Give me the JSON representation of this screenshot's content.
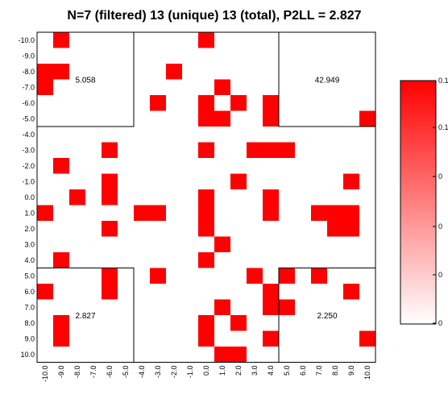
{
  "chart_data": {
    "type": "heatmap",
    "title": "N=7 (filtered) 13 (unique) 13 (total), P2LL = 2.827",
    "xlabel": "",
    "ylabel": "",
    "x_tick_labels": [
      "-10.0",
      "-9.0",
      "-8.0",
      "-7.0",
      "-6.0",
      "-5.0",
      "-4.0",
      "-3.0",
      "-2.0",
      "-1.0",
      "0.0",
      "1.0",
      "2.0",
      "3.0",
      "4.0",
      "5.0",
      "6.0",
      "7.0",
      "8.0",
      "9.0",
      "10.0"
    ],
    "y_tick_labels": [
      "-10.0",
      "-9.0",
      "-8.0",
      "-7.0",
      "-6.0",
      "-5.0",
      "-4.0",
      "-3.0",
      "-2.0",
      "-1.0",
      "0.0",
      "1.0",
      "2.0",
      "3.0",
      "4.0",
      "5.0",
      "6.0",
      "7.0",
      "8.0",
      "9.0",
      "10.0"
    ],
    "xlim": [
      -10,
      10
    ],
    "ylim": [
      -10,
      10
    ],
    "cell_color": "#ff0000",
    "background": "#ffffff",
    "cells": [
      [
        -9,
        -10
      ],
      [
        0,
        -10
      ],
      [
        -10,
        -8
      ],
      [
        -9,
        -8
      ],
      [
        -2,
        -8
      ],
      [
        -10,
        -7
      ],
      [
        1,
        -7
      ],
      [
        -3,
        -6
      ],
      [
        0,
        -6
      ],
      [
        2,
        -6
      ],
      [
        4,
        -6
      ],
      [
        0,
        -5
      ],
      [
        1,
        -5
      ],
      [
        4,
        -5
      ],
      [
        10,
        -5
      ],
      [
        -6,
        -3
      ],
      [
        0,
        -3
      ],
      [
        3,
        -3
      ],
      [
        4,
        -3
      ],
      [
        5,
        -3
      ],
      [
        -9,
        -2
      ],
      [
        -6,
        -1
      ],
      [
        2,
        -1
      ],
      [
        9,
        -1
      ],
      [
        -8,
        0
      ],
      [
        -6,
        0
      ],
      [
        0,
        0
      ],
      [
        4,
        0
      ],
      [
        -10,
        1
      ],
      [
        -4,
        1
      ],
      [
        -3,
        1
      ],
      [
        0,
        1
      ],
      [
        4,
        1
      ],
      [
        7,
        1
      ],
      [
        8,
        1
      ],
      [
        9,
        1
      ],
      [
        -6,
        2
      ],
      [
        0,
        2
      ],
      [
        8,
        2
      ],
      [
        9,
        2
      ],
      [
        1,
        3
      ],
      [
        -9,
        4
      ],
      [
        0,
        4
      ],
      [
        -6,
        5
      ],
      [
        -3,
        5
      ],
      [
        3,
        5
      ],
      [
        5,
        5
      ],
      [
        7,
        5
      ],
      [
        -10,
        6
      ],
      [
        -6,
        6
      ],
      [
        4,
        6
      ],
      [
        9,
        6
      ],
      [
        1,
        7
      ],
      [
        4,
        7
      ],
      [
        5,
        7
      ],
      [
        -9,
        8
      ],
      [
        0,
        8
      ],
      [
        2,
        8
      ],
      [
        -9,
        9
      ],
      [
        0,
        9
      ],
      [
        4,
        9
      ],
      [
        10,
        9
      ],
      [
        1,
        10
      ],
      [
        2,
        10
      ]
    ],
    "quadrant_boxes": [
      {
        "x": [
          -10,
          -5
        ],
        "y": [
          -10,
          -5
        ],
        "label": "5.058"
      },
      {
        "x": [
          5,
          10
        ],
        "y": [
          -10,
          -5
        ],
        "label": "42.949"
      },
      {
        "x": [
          -10,
          -5
        ],
        "y": [
          5,
          10
        ],
        "label": "2.827"
      },
      {
        "x": [
          5,
          10
        ],
        "y": [
          5,
          10
        ],
        "label": "2.250"
      }
    ],
    "colorbar": {
      "tick_labels": [
        "0.1",
        "0.1",
        "0",
        "0",
        "0",
        "0"
      ],
      "color_low": "#ffffff",
      "color_high": "#ff0000"
    }
  }
}
